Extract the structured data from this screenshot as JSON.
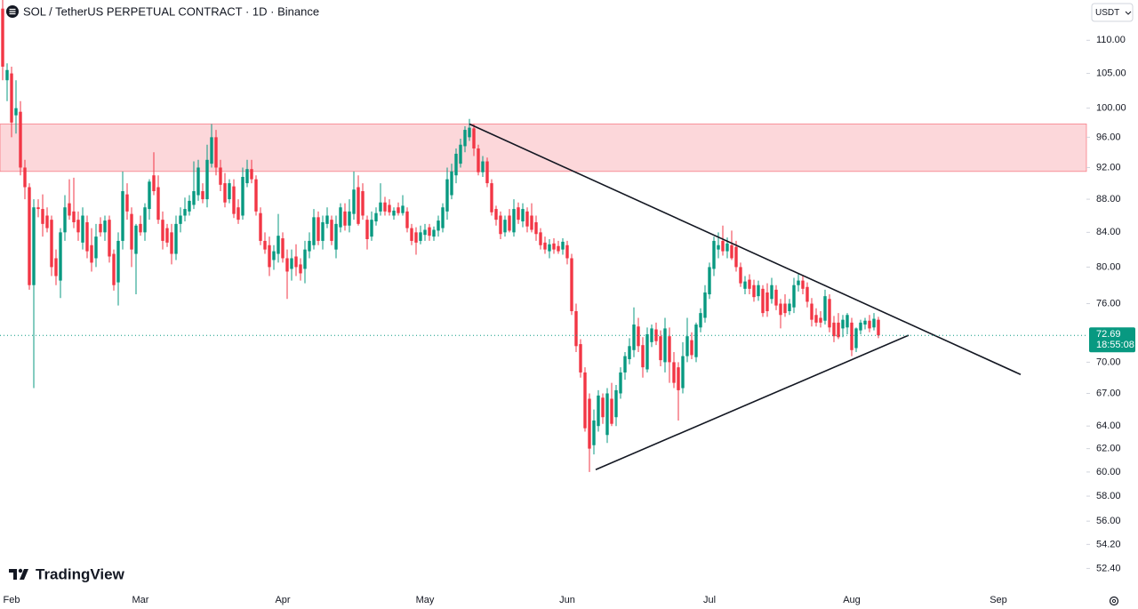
{
  "chart_data": {
    "type": "candlestick",
    "title": "SOL / TetherUS PERPETUAL CONTRACT · 1D · Binance",
    "quote_currency": "USDT",
    "branding": "TradingView",
    "log_scale": true,
    "up_color": "#089981",
    "down_color": "#f23645",
    "zone_color": "#f23645",
    "price_label_color": "#089981",
    "ylim": [
      51.07,
      116.4
    ],
    "yticks": [
      {
        "value": 110,
        "label": "110.00"
      },
      {
        "value": 105,
        "label": "105.00"
      },
      {
        "value": 100,
        "label": "100.00"
      },
      {
        "value": 96,
        "label": "96.00"
      },
      {
        "value": 92,
        "label": "92.00"
      },
      {
        "value": 88,
        "label": "88.00"
      },
      {
        "value": 84,
        "label": "84.00"
      },
      {
        "value": 80,
        "label": "80.00"
      },
      {
        "value": 76,
        "label": "76.00"
      },
      {
        "value": 70,
        "label": "70.00"
      },
      {
        "value": 67,
        "label": "67.00"
      },
      {
        "value": 64,
        "label": "64.00"
      },
      {
        "value": 62,
        "label": "62.00"
      },
      {
        "value": 60,
        "label": "60.00"
      },
      {
        "value": 58,
        "label": "58.00"
      },
      {
        "value": 56,
        "label": "56.00"
      },
      {
        "value": 54.2,
        "label": "54.20"
      },
      {
        "value": 52.4,
        "label": "52.40"
      }
    ],
    "last_price": 72.69,
    "countdown": "18:55:08",
    "resistance_zone": [
      91.5,
      97.8
    ],
    "trendlines": [
      {
        "start": [
          105,
          97.8
        ],
        "end": [
          229,
          68.8
        ]
      },
      {
        "start": [
          133.4,
          60.2
        ],
        "end": [
          203.8,
          72.7
        ]
      }
    ],
    "categories": [
      null,
      null,
      "Feb",
      null,
      null,
      null,
      null,
      null,
      null,
      null,
      null,
      null,
      null,
      null,
      null,
      null,
      null,
      null,
      null,
      null,
      null,
      null,
      null,
      null,
      null,
      null,
      null,
      null,
      null,
      null,
      null,
      "Mar",
      null,
      null,
      null,
      null,
      null,
      null,
      null,
      null,
      null,
      null,
      null,
      null,
      null,
      null,
      null,
      null,
      null,
      null,
      null,
      null,
      null,
      null,
      null,
      null,
      null,
      null,
      null,
      null,
      null,
      null,
      null,
      "Apr",
      null,
      null,
      null,
      null,
      null,
      null,
      null,
      null,
      null,
      null,
      null,
      null,
      null,
      null,
      null,
      null,
      null,
      null,
      null,
      null,
      null,
      null,
      null,
      null,
      null,
      null,
      null,
      null,
      null,
      null,
      null,
      "May",
      null,
      null,
      null,
      null,
      null,
      null,
      null,
      null,
      null,
      null,
      null,
      null,
      null,
      null,
      null,
      null,
      null,
      null,
      null,
      null,
      null,
      null,
      null,
      null,
      null,
      null,
      null,
      null,
      null,
      null,
      null,
      "Jun",
      null,
      null,
      null,
      null,
      null,
      null,
      null,
      null,
      null,
      null,
      null,
      null,
      null,
      null,
      null,
      null,
      null,
      null,
      null,
      null,
      null,
      null,
      null,
      null,
      null,
      null,
      null,
      null,
      null,
      null,
      null,
      "Jul",
      null,
      null,
      null,
      null,
      null,
      null,
      null,
      null,
      null,
      null,
      null,
      null,
      null,
      null,
      null,
      null,
      null,
      null,
      null,
      null,
      null,
      null,
      null,
      null,
      null,
      null,
      null,
      null,
      null,
      null,
      null,
      "Aug",
      null,
      null,
      null,
      null,
      null,
      null,
      null,
      null,
      null,
      null,
      null,
      null,
      null,
      null,
      null,
      null,
      null,
      null,
      null,
      null,
      null,
      null,
      null,
      null,
      null,
      null,
      null,
      null,
      null,
      null,
      null,
      null,
      "Sep",
      null,
      null,
      null,
      null,
      null,
      null,
      null,
      null,
      null,
      null,
      null,
      null,
      null,
      null,
      null,
      null,
      null,
      null,
      null
    ],
    "ohlc": [
      [
        115,
        117,
        104,
        106
      ],
      [
        104,
        106.5,
        101,
        105.5
      ],
      [
        105,
        106,
        96,
        98
      ],
      [
        99,
        104,
        96.5,
        100
      ],
      [
        99.5,
        101,
        91,
        92
      ],
      [
        92,
        93,
        88,
        89.5
      ],
      [
        89.5,
        90,
        77.5,
        78
      ],
      [
        78,
        88,
        67.5,
        87
      ],
      [
        87,
        88,
        85.8,
        86.8
      ],
      [
        86.8,
        88.6,
        83.5,
        85
      ],
      [
        86,
        87,
        84,
        84.5
      ],
      [
        85.5,
        86,
        79,
        80
      ],
      [
        81,
        82,
        78,
        79
      ],
      [
        78.5,
        84.5,
        76.6,
        84
      ],
      [
        84,
        88.5,
        83,
        87
      ],
      [
        87.5,
        90.5,
        85.5,
        86
      ],
      [
        86.5,
        90.7,
        84.5,
        85.2
      ],
      [
        85.5,
        86.5,
        83,
        84
      ],
      [
        82.8,
        87,
        82,
        86
      ],
      [
        85.2,
        86,
        81,
        81.8
      ],
      [
        82.5,
        84.5,
        79.5,
        80.5
      ],
      [
        81,
        85,
        80,
        83.5
      ],
      [
        85,
        85.8,
        83.5,
        84
      ],
      [
        84,
        86,
        83,
        85.4
      ],
      [
        85.5,
        86,
        80.5,
        81.2
      ],
      [
        81.5,
        82,
        77.4,
        78
      ],
      [
        78.3,
        84,
        75.8,
        83
      ],
      [
        83,
        91.5,
        82,
        89
      ],
      [
        88.6,
        90,
        85.5,
        86.5
      ],
      [
        86.2,
        87,
        80,
        82
      ],
      [
        81.5,
        85,
        77,
        84.8
      ],
      [
        85,
        86,
        83.6,
        84
      ],
      [
        84,
        87.5,
        83,
        87
      ],
      [
        86.8,
        90.5,
        85.5,
        90.2
      ],
      [
        91,
        94,
        88.5,
        89
      ],
      [
        89.5,
        91,
        85,
        85.5
      ],
      [
        85.5,
        86.5,
        82,
        83
      ],
      [
        84.5,
        85,
        82.3,
        82.8
      ],
      [
        84,
        85,
        80.3,
        81.5
      ],
      [
        81.5,
        86,
        80.8,
        85
      ],
      [
        85,
        87,
        84,
        86
      ],
      [
        86,
        88.2,
        85.3,
        86.8
      ],
      [
        86.5,
        88.5,
        86,
        87.8
      ],
      [
        87.3,
        92.8,
        86.8,
        89
      ],
      [
        88.5,
        93,
        87.8,
        92
      ],
      [
        89,
        90,
        87.5,
        88
      ],
      [
        88,
        95,
        87,
        93
      ],
      [
        92.5,
        97.8,
        92,
        96
      ],
      [
        96,
        97,
        91,
        92
      ],
      [
        92,
        93,
        89,
        89.8
      ],
      [
        90,
        91.3,
        87,
        87.6
      ],
      [
        88,
        90.5,
        87.5,
        90
      ],
      [
        89.6,
        90.5,
        85.7,
        86.2
      ],
      [
        87,
        88,
        85,
        85.5
      ],
      [
        86,
        92,
        85.5,
        90.8
      ],
      [
        90,
        93,
        89.5,
        91.8
      ],
      [
        91.8,
        93,
        90,
        90.5
      ],
      [
        90.5,
        91,
        86,
        86.5
      ],
      [
        86.3,
        87,
        82.5,
        83
      ],
      [
        83,
        84,
        81.5,
        82
      ],
      [
        82.5,
        83.5,
        79,
        80
      ],
      [
        80.8,
        82.5,
        79.7,
        81.8
      ],
      [
        81.5,
        86.2,
        80.5,
        83.6
      ],
      [
        83.3,
        84,
        80.5,
        81
      ],
      [
        81,
        82,
        76.5,
        79.5
      ],
      [
        79.8,
        82,
        78.5,
        81
      ],
      [
        81.2,
        82.6,
        79,
        80
      ],
      [
        80.3,
        81,
        78.5,
        79.3
      ],
      [
        79.8,
        83,
        78.2,
        82
      ],
      [
        81.8,
        84,
        81,
        83
      ],
      [
        82.5,
        86.8,
        82,
        85.8
      ],
      [
        85.8,
        86.5,
        82.5,
        83
      ],
      [
        83,
        86,
        82,
        85.2
      ],
      [
        85,
        87,
        84.5,
        86
      ],
      [
        85.5,
        86,
        82.5,
        83
      ],
      [
        82,
        86,
        81,
        85
      ],
      [
        84.6,
        87.5,
        84,
        87
      ],
      [
        86.5,
        87.5,
        84.2,
        84.8
      ],
      [
        84.8,
        88,
        84,
        86.5
      ],
      [
        86.2,
        91.5,
        85.5,
        89.2
      ],
      [
        89.5,
        91,
        84.8,
        85
      ],
      [
        89,
        90,
        85.5,
        86
      ],
      [
        85.5,
        86,
        82,
        83.2
      ],
      [
        83.5,
        86.5,
        83,
        85.5
      ],
      [
        85.3,
        87,
        84.8,
        86.3
      ],
      [
        86.5,
        90,
        86,
        87.6
      ],
      [
        87.6,
        88.3,
        86,
        86.5
      ],
      [
        87.3,
        88,
        86,
        86.4
      ],
      [
        86,
        87,
        85.5,
        86.6
      ],
      [
        87,
        87.6,
        86,
        86.3
      ],
      [
        86.3,
        88.5,
        86,
        87.2
      ],
      [
        86.5,
        87,
        84,
        84.5
      ],
      [
        84.5,
        85,
        82.5,
        83
      ],
      [
        84,
        84.6,
        81.4,
        82.8
      ],
      [
        83,
        84.8,
        82.6,
        84
      ],
      [
        83.7,
        85,
        83,
        84.3
      ],
      [
        84.6,
        85,
        83,
        83.6
      ],
      [
        83.5,
        84.7,
        83,
        84.3
      ],
      [
        84.2,
        86,
        83.5,
        85.4
      ],
      [
        84.5,
        87.5,
        84,
        87
      ],
      [
        86.5,
        92,
        85.5,
        90.5
      ],
      [
        88.5,
        92.5,
        88,
        91.5
      ],
      [
        91,
        94.5,
        90,
        93.8
      ],
      [
        92.5,
        95.8,
        92,
        95
      ],
      [
        94.8,
        97.5,
        94,
        97
      ],
      [
        96,
        98.5,
        95.5,
        97.3
      ],
      [
        97.2,
        97.8,
        93.5,
        94.5
      ],
      [
        94.5,
        95,
        91,
        91.4
      ],
      [
        91.4,
        93.5,
        90.8,
        92.8
      ],
      [
        92.8,
        93.3,
        89.5,
        90
      ],
      [
        90,
        90.5,
        86,
        86.4
      ],
      [
        86.8,
        87.2,
        84.8,
        85.5
      ],
      [
        86,
        86.5,
        83.2,
        83.8
      ],
      [
        84,
        86,
        83.5,
        85.5
      ],
      [
        86,
        86.8,
        84,
        84.2
      ],
      [
        84,
        88,
        83.5,
        86.8
      ],
      [
        87,
        87.6,
        85,
        85.5
      ],
      [
        85.3,
        87.5,
        84.6,
        86.8
      ],
      [
        86.5,
        87,
        84,
        84.7
      ],
      [
        86,
        87.5,
        84,
        84.3
      ],
      [
        85.2,
        86,
        83,
        83.8
      ],
      [
        84,
        84.5,
        82,
        82.5
      ],
      [
        82.8,
        83.5,
        81.5,
        82
      ],
      [
        81.8,
        83.2,
        81,
        82.6
      ],
      [
        82.7,
        83.3,
        81.5,
        82
      ],
      [
        82.4,
        83,
        81.5,
        81.8
      ],
      [
        82,
        83.3,
        81.4,
        82.9
      ],
      [
        82.5,
        83,
        80.3,
        81
      ],
      [
        81,
        81.5,
        74.8,
        75.2
      ],
      [
        75.2,
        76,
        71,
        71.6
      ],
      [
        71.8,
        72.3,
        68.5,
        69
      ],
      [
        69,
        69.5,
        63.5,
        63.8
      ],
      [
        66.5,
        67,
        60,
        62
      ],
      [
        62.3,
        65.5,
        61.5,
        64.5
      ],
      [
        64,
        67.3,
        63.5,
        66.8
      ],
      [
        66.6,
        67,
        64.2,
        64.8
      ],
      [
        63.2,
        67.5,
        62.5,
        67
      ],
      [
        66.5,
        68,
        64,
        64.2
      ],
      [
        64.8,
        67.8,
        64,
        67.3
      ],
      [
        67,
        69.5,
        66.5,
        69
      ],
      [
        69,
        71,
        68.3,
        70.6
      ],
      [
        70.3,
        72.4,
        69.8,
        71.6
      ],
      [
        71.2,
        75.6,
        70.5,
        73.8
      ],
      [
        73.6,
        74.5,
        71,
        71.6
      ],
      [
        71.7,
        72.5,
        68.5,
        69.5
      ],
      [
        69.3,
        73.5,
        69,
        72.8
      ],
      [
        72,
        73.8,
        71.5,
        73.4
      ],
      [
        73.3,
        74,
        71.7,
        72.1
      ],
      [
        72.6,
        73.2,
        69.6,
        70.2
      ],
      [
        70,
        74.5,
        69,
        73.4
      ],
      [
        72.6,
        73.5,
        68,
        70
      ],
      [
        70,
        71,
        67.5,
        68
      ],
      [
        69.5,
        70,
        64.5,
        67.3
      ],
      [
        67.5,
        72,
        67,
        70.6
      ],
      [
        70.6,
        74.5,
        70,
        72.6
      ],
      [
        72.2,
        73,
        70.3,
        70.7
      ],
      [
        70.5,
        74,
        70,
        73.8
      ],
      [
        73.5,
        75.5,
        73,
        75
      ],
      [
        74.5,
        78,
        74,
        77.2
      ],
      [
        77,
        80.5,
        76.5,
        80
      ],
      [
        79.8,
        83.5,
        79,
        83
      ],
      [
        82,
        84,
        81,
        82.5
      ],
      [
        83,
        84.8,
        81.3,
        81.8
      ],
      [
        81.8,
        83.4,
        81,
        82.7
      ],
      [
        82.5,
        84.2,
        80.8,
        81
      ],
      [
        82.3,
        83,
        79.5,
        80
      ],
      [
        80,
        80.5,
        77.8,
        78.2
      ],
      [
        77.6,
        79,
        77,
        78.4
      ],
      [
        78.6,
        79.2,
        77,
        77.6
      ],
      [
        78,
        78.6,
        76.2,
        76.7
      ],
      [
        76.8,
        78.5,
        76.3,
        78
      ],
      [
        77.6,
        78,
        74.6,
        75
      ],
      [
        77.2,
        78.2,
        74.6,
        75.2
      ],
      [
        76.5,
        78.8,
        76,
        78
      ],
      [
        77.5,
        78,
        75.3,
        75.8
      ],
      [
        76,
        76.5,
        73.4,
        74.8
      ],
      [
        76,
        77,
        74.6,
        75
      ],
      [
        75.2,
        76.5,
        74.8,
        76
      ],
      [
        75.6,
        78.8,
        75,
        78
      ],
      [
        78,
        79.2,
        77.3,
        78.5
      ],
      [
        78.5,
        79,
        77,
        77.6
      ],
      [
        77.8,
        78.3,
        75.6,
        76.2
      ],
      [
        76,
        76.6,
        73.6,
        74.3
      ],
      [
        74.8,
        75.5,
        73.6,
        74
      ],
      [
        74.5,
        75.2,
        73.5,
        74
      ],
      [
        74.2,
        77.5,
        73.8,
        76.8
      ],
      [
        76.5,
        77,
        73,
        73.5
      ],
      [
        74,
        74.7,
        72,
        72.6
      ],
      [
        74,
        75,
        72.3,
        72.5
      ],
      [
        73.4,
        74.8,
        72.5,
        74.3
      ],
      [
        73.5,
        75,
        72.8,
        74.8
      ],
      [
        74,
        74.5,
        70.6,
        71.2
      ],
      [
        71.4,
        73.5,
        71,
        73.4
      ],
      [
        73.2,
        74.3,
        72.8,
        74
      ],
      [
        73.8,
        74.5,
        73.3,
        74.2
      ],
      [
        74.2,
        74.8,
        73,
        73.4
      ],
      [
        73.5,
        75,
        73.2,
        74.4
      ],
      [
        74.3,
        74.6,
        72.4,
        72.69
      ],
      null,
      null,
      null,
      null,
      null,
      null,
      null,
      null,
      null,
      null,
      null,
      null,
      null,
      null,
      null,
      null,
      null,
      null,
      null,
      null,
      null,
      null,
      null,
      null,
      null,
      null,
      null,
      null,
      null,
      null,
      null,
      null,
      null,
      null,
      null,
      null,
      null,
      null,
      null,
      null,
      null,
      null,
      null,
      null,
      null,
      null
    ]
  }
}
